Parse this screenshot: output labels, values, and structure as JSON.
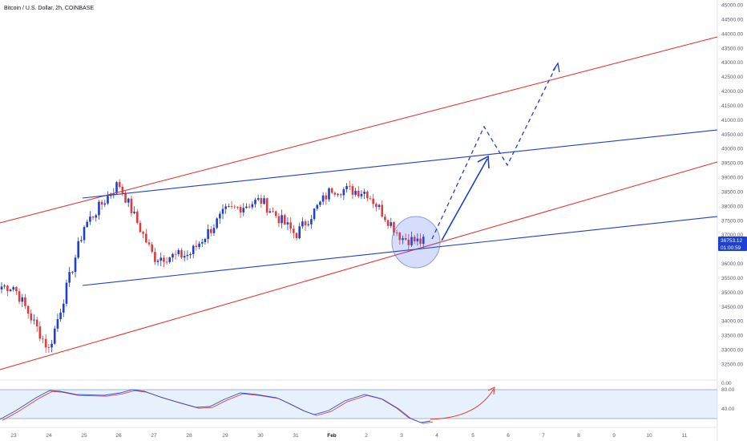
{
  "header": {
    "title": "Bitcoin / U.S. Dollar, 2h, COINBASE"
  },
  "colors": {
    "up": "#1e3fd0",
    "down": "#e03b3b",
    "channel_red": "#e53935",
    "channel_blue": "#1f3fcf",
    "stoch_fill": "#e6f1fd",
    "stoch_k": "#2c4fd8",
    "stoch_d": "#e04848",
    "price_label_bg": "#1e3fd0"
  },
  "chart_data": {
    "type": "candlestick",
    "title": "Bitcoin / U.S. Dollar, 2h, COINBASE",
    "ylim": [
      32000,
      45000
    ],
    "y_ticks": [
      "32500.00",
      "33000.00",
      "33500.00",
      "34000.00",
      "34500.00",
      "35000.00",
      "35500.00",
      "36000.00",
      "36500.00",
      "37000.00",
      "37500.00",
      "38000.00",
      "38500.00",
      "39000.00",
      "39500.00",
      "40000.00",
      "40500.00",
      "41000.00",
      "41500.00",
      "42000.00",
      "42500.00",
      "43000.00",
      "43500.00",
      "44000.00",
      "44500.00",
      "45000.00"
    ],
    "x_ticks": [
      "23",
      "24",
      "25",
      "26",
      "27",
      "28",
      "29",
      "30",
      "31",
      "Feb",
      "2",
      "3",
      "4",
      "5",
      "6",
      "7",
      "8",
      "9",
      "10",
      "11"
    ],
    "price_label": {
      "price": "36753.12",
      "countdown": "01:00:59"
    },
    "key_points": [
      {
        "x": "23",
        "y": 35200
      },
      {
        "x": "24",
        "y": 33000
      },
      {
        "x": "25",
        "y": 37300
      },
      {
        "x": "26",
        "y": 38800
      },
      {
        "x": "27",
        "y": 36200
      },
      {
        "x": "28",
        "y": 36300
      },
      {
        "x": "29",
        "y": 37800
      },
      {
        "x": "30",
        "y": 38200
      },
      {
        "x": "31",
        "y": 37000
      },
      {
        "x": "Feb",
        "y": 38600
      },
      {
        "x": "2",
        "y": 38500
      },
      {
        "x": "3",
        "y": 36900
      },
      {
        "x": "3.5",
        "y": 36750
      }
    ],
    "stochastic": {
      "levels": [
        "80.00",
        "40.00"
      ],
      "top_label": "0.00"
    }
  }
}
